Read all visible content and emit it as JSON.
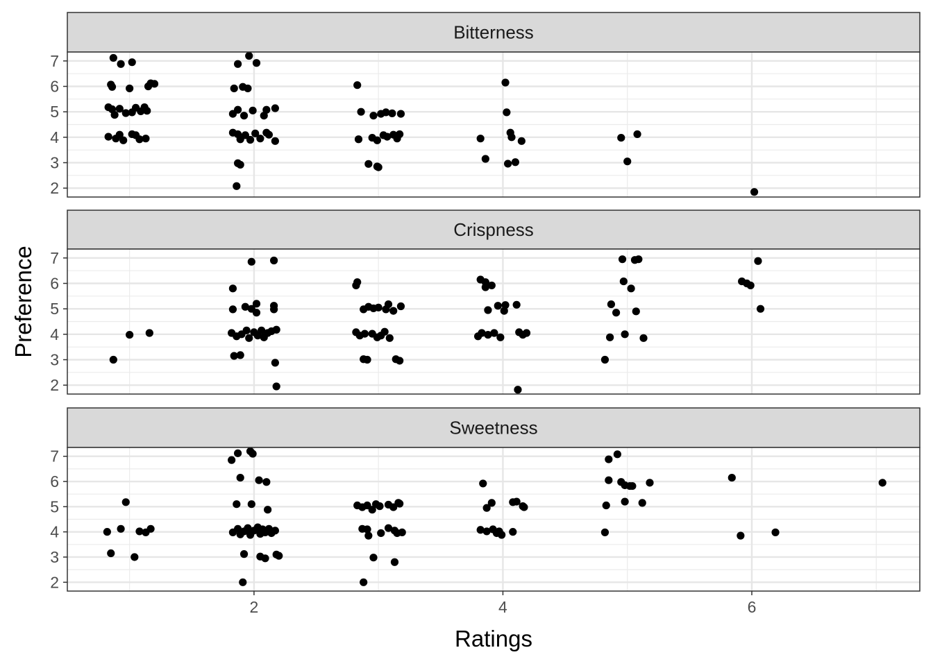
{
  "chart_data": {
    "type": "scatter",
    "xlabel": "Ratings",
    "ylabel": "Preference",
    "xlim": [
      0.5,
      7.35
    ],
    "ylim": [
      1.65,
      7.35
    ],
    "x_ticks": [
      2,
      4,
      6
    ],
    "y_ticks": [
      2,
      3,
      4,
      5,
      6,
      7
    ],
    "grid": true,
    "jitter": true,
    "point_color": "#000000",
    "panels": [
      {
        "name": "Bitterness",
        "points": [
          [
            0.87,
            7.12
          ],
          [
            0.93,
            6.88
          ],
          [
            1.02,
            6.95
          ],
          [
            0.85,
            6.07
          ],
          [
            0.86,
            5.98
          ],
          [
            1.0,
            5.92
          ],
          [
            1.17,
            6.12
          ],
          [
            1.15,
            6.0
          ],
          [
            1.2,
            6.1
          ],
          [
            0.83,
            5.18
          ],
          [
            0.86,
            5.1
          ],
          [
            0.88,
            4.88
          ],
          [
            0.92,
            5.12
          ],
          [
            0.97,
            4.95
          ],
          [
            1.02,
            4.98
          ],
          [
            1.05,
            5.16
          ],
          [
            1.09,
            5.02
          ],
          [
            1.12,
            5.18
          ],
          [
            1.14,
            5.04
          ],
          [
            0.83,
            4.02
          ],
          [
            0.89,
            3.95
          ],
          [
            0.92,
            4.1
          ],
          [
            0.95,
            3.88
          ],
          [
            1.02,
            4.12
          ],
          [
            1.05,
            4.08
          ],
          [
            1.08,
            3.92
          ],
          [
            1.13,
            3.95
          ],
          [
            1.87,
            6.88
          ],
          [
            1.96,
            7.2
          ],
          [
            2.02,
            6.92
          ],
          [
            1.84,
            5.92
          ],
          [
            1.91,
            5.98
          ],
          [
            1.95,
            5.92
          ],
          [
            1.83,
            4.92
          ],
          [
            1.87,
            5.08
          ],
          [
            1.92,
            4.85
          ],
          [
            1.99,
            5.05
          ],
          [
            2.08,
            4.85
          ],
          [
            2.1,
            5.08
          ],
          [
            2.17,
            5.14
          ],
          [
            1.83,
            4.18
          ],
          [
            1.87,
            4.12
          ],
          [
            1.89,
            3.92
          ],
          [
            1.93,
            4.08
          ],
          [
            1.97,
            3.9
          ],
          [
            2.01,
            4.15
          ],
          [
            2.05,
            3.95
          ],
          [
            2.1,
            4.18
          ],
          [
            2.12,
            4.1
          ],
          [
            2.17,
            3.85
          ],
          [
            1.87,
            2.98
          ],
          [
            1.89,
            2.92
          ],
          [
            1.86,
            2.08
          ],
          [
            2.83,
            6.05
          ],
          [
            2.86,
            5.0
          ],
          [
            2.96,
            4.85
          ],
          [
            3.02,
            4.92
          ],
          [
            3.06,
            4.98
          ],
          [
            3.11,
            4.94
          ],
          [
            3.18,
            4.92
          ],
          [
            2.84,
            3.92
          ],
          [
            2.95,
            3.98
          ],
          [
            2.99,
            3.88
          ],
          [
            3.04,
            4.08
          ],
          [
            3.07,
            4.02
          ],
          [
            3.12,
            4.1
          ],
          [
            3.15,
            3.95
          ],
          [
            3.17,
            4.12
          ],
          [
            2.92,
            2.95
          ],
          [
            2.99,
            2.85
          ],
          [
            3.0,
            2.82
          ],
          [
            3.82,
            3.95
          ],
          [
            3.86,
            3.15
          ],
          [
            4.02,
            6.15
          ],
          [
            4.03,
            4.98
          ],
          [
            4.06,
            4.18
          ],
          [
            4.07,
            4.0
          ],
          [
            4.04,
            2.96
          ],
          [
            4.1,
            3.02
          ],
          [
            4.15,
            3.85
          ],
          [
            4.95,
            3.98
          ],
          [
            5.0,
            3.05
          ],
          [
            5.08,
            4.12
          ],
          [
            6.02,
            1.85
          ]
        ]
      },
      {
        "name": "Crispness",
        "points": [
          [
            0.87,
            3.0
          ],
          [
            1.0,
            3.98
          ],
          [
            1.16,
            4.05
          ],
          [
            1.83,
            5.8
          ],
          [
            1.83,
            4.98
          ],
          [
            1.98,
            6.85
          ],
          [
            2.16,
            6.9
          ],
          [
            1.93,
            5.08
          ],
          [
            1.98,
            5.0
          ],
          [
            2.02,
            5.2
          ],
          [
            2.02,
            4.85
          ],
          [
            2.16,
            5.12
          ],
          [
            2.16,
            4.98
          ],
          [
            1.82,
            4.05
          ],
          [
            1.86,
            3.92
          ],
          [
            1.9,
            4.0
          ],
          [
            1.94,
            4.15
          ],
          [
            1.96,
            3.85
          ],
          [
            2.0,
            4.08
          ],
          [
            2.03,
            3.95
          ],
          [
            2.06,
            4.15
          ],
          [
            2.08,
            3.88
          ],
          [
            2.11,
            4.05
          ],
          [
            2.14,
            4.12
          ],
          [
            2.18,
            4.18
          ],
          [
            1.84,
            3.15
          ],
          [
            1.89,
            3.18
          ],
          [
            2.17,
            2.88
          ],
          [
            2.18,
            1.95
          ],
          [
            2.82,
            5.92
          ],
          [
            2.83,
            6.05
          ],
          [
            2.88,
            4.98
          ],
          [
            2.92,
            5.08
          ],
          [
            2.96,
            5.02
          ],
          [
            3.0,
            5.05
          ],
          [
            3.06,
            4.98
          ],
          [
            3.08,
            5.18
          ],
          [
            3.12,
            4.92
          ],
          [
            3.18,
            5.1
          ],
          [
            2.82,
            4.08
          ],
          [
            2.85,
            3.95
          ],
          [
            2.89,
            4.02
          ],
          [
            2.95,
            4.02
          ],
          [
            2.99,
            3.88
          ],
          [
            3.02,
            3.95
          ],
          [
            3.05,
            4.1
          ],
          [
            3.09,
            3.85
          ],
          [
            2.88,
            3.02
          ],
          [
            2.91,
            3.0
          ],
          [
            3.14,
            3.02
          ],
          [
            3.17,
            2.96
          ],
          [
            3.82,
            6.15
          ],
          [
            3.86,
            6.05
          ],
          [
            3.86,
            5.85
          ],
          [
            3.91,
            5.92
          ],
          [
            3.88,
            4.95
          ],
          [
            3.96,
            5.12
          ],
          [
            4.02,
            5.15
          ],
          [
            4.01,
            4.92
          ],
          [
            4.11,
            5.16
          ],
          [
            3.8,
            3.92
          ],
          [
            3.83,
            4.05
          ],
          [
            3.88,
            3.98
          ],
          [
            3.93,
            4.05
          ],
          [
            3.98,
            3.88
          ],
          [
            4.13,
            4.08
          ],
          [
            4.16,
            3.98
          ],
          [
            4.19,
            4.05
          ],
          [
            4.12,
            1.82
          ],
          [
            4.96,
            6.95
          ],
          [
            5.06,
            6.92
          ],
          [
            5.09,
            6.95
          ],
          [
            4.97,
            6.08
          ],
          [
            5.03,
            5.8
          ],
          [
            4.87,
            5.18
          ],
          [
            4.91,
            4.85
          ],
          [
            5.07,
            4.9
          ],
          [
            4.86,
            3.88
          ],
          [
            4.98,
            4.0
          ],
          [
            5.13,
            3.85
          ],
          [
            4.82,
            3.0
          ],
          [
            5.92,
            6.08
          ],
          [
            5.96,
            6.0
          ],
          [
            5.99,
            5.92
          ],
          [
            6.05,
            6.88
          ],
          [
            6.07,
            5.0
          ]
        ]
      },
      {
        "name": "Sweetness",
        "points": [
          [
            0.82,
            4.0
          ],
          [
            0.85,
            3.15
          ],
          [
            0.93,
            4.12
          ],
          [
            0.97,
            5.18
          ],
          [
            1.04,
            3.0
          ],
          [
            1.08,
            4.02
          ],
          [
            1.13,
            3.98
          ],
          [
            1.17,
            4.12
          ],
          [
            1.82,
            6.85
          ],
          [
            1.87,
            7.12
          ],
          [
            1.97,
            7.2
          ],
          [
            1.99,
            7.1
          ],
          [
            1.89,
            6.15
          ],
          [
            2.04,
            6.05
          ],
          [
            2.1,
            5.98
          ],
          [
            1.86,
            5.1
          ],
          [
            1.98,
            5.1
          ],
          [
            2.11,
            4.88
          ],
          [
            1.83,
            3.98
          ],
          [
            1.87,
            4.12
          ],
          [
            1.89,
            3.9
          ],
          [
            1.92,
            4.02
          ],
          [
            1.95,
            4.15
          ],
          [
            1.97,
            3.88
          ],
          [
            2.0,
            4.05
          ],
          [
            2.03,
            4.18
          ],
          [
            2.05,
            3.92
          ],
          [
            2.07,
            4.1
          ],
          [
            2.09,
            3.98
          ],
          [
            2.12,
            4.12
          ],
          [
            2.14,
            3.95
          ],
          [
            2.17,
            4.05
          ],
          [
            1.92,
            3.12
          ],
          [
            2.05,
            3.02
          ],
          [
            2.09,
            2.95
          ],
          [
            2.18,
            3.1
          ],
          [
            2.2,
            3.05
          ],
          [
            1.91,
            2.0
          ],
          [
            2.83,
            5.05
          ],
          [
            2.87,
            4.98
          ],
          [
            2.91,
            5.05
          ],
          [
            2.95,
            4.88
          ],
          [
            2.98,
            5.1
          ],
          [
            3.01,
            5.02
          ],
          [
            3.08,
            5.08
          ],
          [
            3.12,
            4.98
          ],
          [
            3.16,
            5.15
          ],
          [
            3.17,
            5.12
          ],
          [
            2.87,
            4.12
          ],
          [
            2.91,
            4.1
          ],
          [
            2.92,
            3.85
          ],
          [
            3.02,
            3.95
          ],
          [
            3.08,
            4.15
          ],
          [
            3.13,
            4.05
          ],
          [
            3.15,
            3.95
          ],
          [
            3.19,
            3.98
          ],
          [
            2.96,
            2.98
          ],
          [
            3.13,
            2.8
          ],
          [
            2.88,
            2.0
          ],
          [
            3.84,
            5.92
          ],
          [
            3.87,
            4.95
          ],
          [
            3.91,
            5.15
          ],
          [
            4.08,
            5.18
          ],
          [
            4.11,
            5.2
          ],
          [
            4.16,
            5.02
          ],
          [
            4.17,
            4.98
          ],
          [
            3.82,
            4.08
          ],
          [
            3.87,
            4.02
          ],
          [
            3.92,
            4.1
          ],
          [
            3.95,
            3.95
          ],
          [
            3.97,
            4.02
          ],
          [
            3.99,
            3.88
          ],
          [
            4.08,
            4.0
          ],
          [
            4.85,
            6.88
          ],
          [
            4.92,
            7.08
          ],
          [
            4.85,
            6.05
          ],
          [
            4.95,
            5.98
          ],
          [
            4.98,
            5.85
          ],
          [
            5.02,
            5.82
          ],
          [
            5.04,
            5.82
          ],
          [
            5.18,
            5.95
          ],
          [
            4.83,
            5.05
          ],
          [
            4.98,
            5.2
          ],
          [
            5.12,
            5.15
          ],
          [
            4.82,
            3.98
          ],
          [
            5.84,
            6.15
          ],
          [
            5.91,
            3.85
          ],
          [
            6.19,
            3.98
          ],
          [
            7.05,
            5.95
          ]
        ]
      }
    ]
  }
}
